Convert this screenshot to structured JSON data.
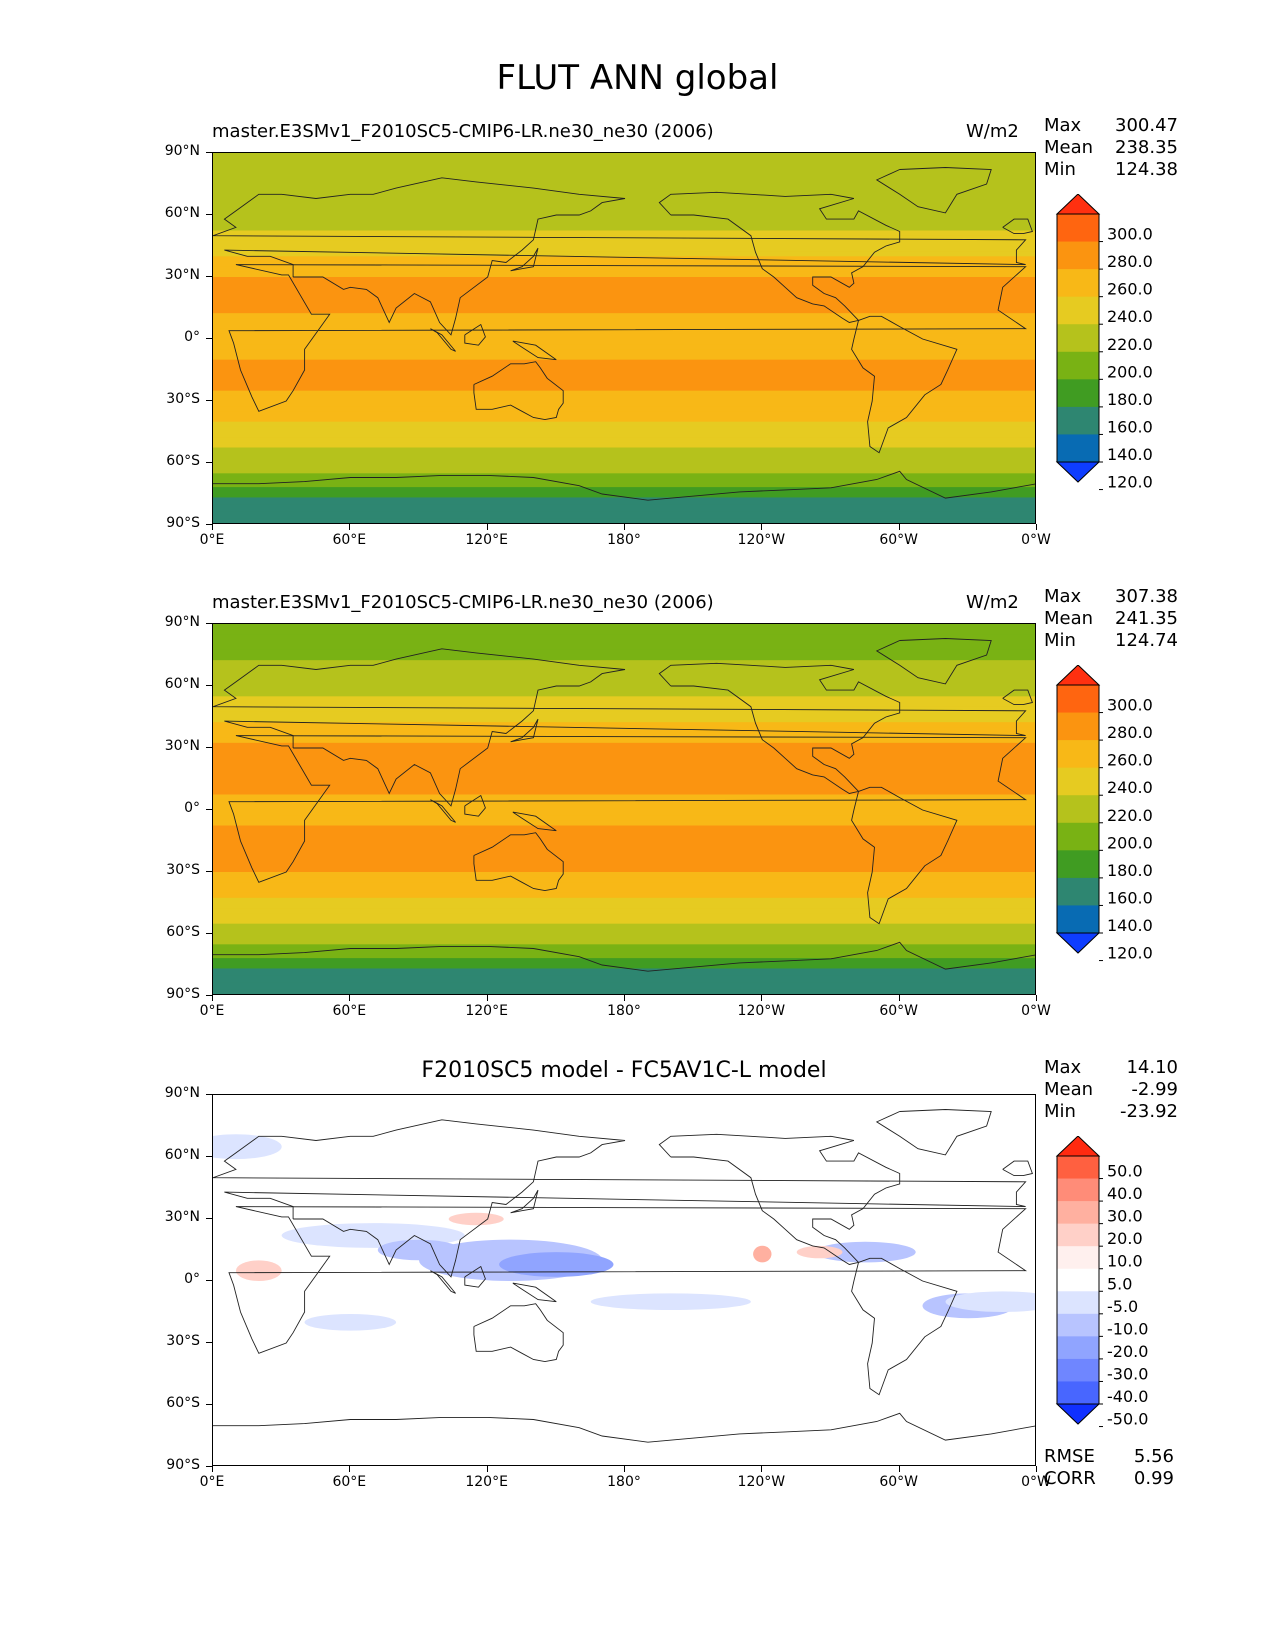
{
  "figure_title": "FLUT ANN global",
  "chart_data": [
    {
      "type": "heatmap",
      "title": "master.E3SMv1_F2010SC5-CMIP6-LR.ne30_ne30 (2006)",
      "units": "W/m2",
      "stats": {
        "max_label": "Max",
        "max": "300.47",
        "mean_label": "Mean",
        "mean": "238.35",
        "min_label": "Min",
        "min": "124.38"
      },
      "colorbar_levels": [
        "300.0",
        "280.0",
        "260.0",
        "240.0",
        "220.0",
        "200.0",
        "180.0",
        "160.0",
        "140.0",
        "120.0"
      ],
      "colorbar_colors": [
        "#ff3010",
        "#ff6510",
        "#fb9410",
        "#f8b817",
        "#e6cb21",
        "#b5c21c",
        "#79b214",
        "#409c22",
        "#2e8671",
        "#086bb3",
        "#0e3dff"
      ],
      "x_ticks": [
        "0°E",
        "60°E",
        "120°E",
        "180°",
        "120°W",
        "60°W",
        "0°W"
      ],
      "y_ticks": [
        "90°N",
        "60°N",
        "30°N",
        "0°",
        "30°S",
        "60°S",
        "90°S"
      ],
      "lat_profile": [
        {
          "lat": 90,
          "value": 205
        },
        {
          "lat": 75,
          "value": 200
        },
        {
          "lat": 60,
          "value": 212
        },
        {
          "lat": 45,
          "value": 228
        },
        {
          "lat": 30,
          "value": 262
        },
        {
          "lat": 15,
          "value": 262
        },
        {
          "lat": 0,
          "value": 248
        },
        {
          "lat": -15,
          "value": 265
        },
        {
          "lat": -30,
          "value": 258
        },
        {
          "lat": -45,
          "value": 230
        },
        {
          "lat": -60,
          "value": 212
        },
        {
          "lat": -70,
          "value": 185
        },
        {
          "lat": -80,
          "value": 150
        },
        {
          "lat": -90,
          "value": 155
        }
      ]
    },
    {
      "type": "heatmap",
      "title": "master.E3SMv1_F2010SC5-CMIP6-LR.ne30_ne30 (2006)",
      "units": "W/m2",
      "stats": {
        "max_label": "Max",
        "max": "307.38",
        "mean_label": "Mean",
        "mean": "241.35",
        "min_label": "Min",
        "min": "124.74"
      },
      "colorbar_levels": [
        "300.0",
        "280.0",
        "260.0",
        "240.0",
        "220.0",
        "200.0",
        "180.0",
        "160.0",
        "140.0",
        "120.0"
      ],
      "colorbar_colors": [
        "#ff3010",
        "#ff6510",
        "#fb9410",
        "#f8b817",
        "#e6cb21",
        "#b5c21c",
        "#79b214",
        "#409c22",
        "#2e8671",
        "#086bb3",
        "#0e3dff"
      ],
      "x_ticks": [
        "0°E",
        "60°E",
        "120°E",
        "180°",
        "120°W",
        "60°W",
        "0°W"
      ],
      "y_ticks": [
        "90°N",
        "60°N",
        "30°N",
        "0°",
        "30°S",
        "60°S",
        "90°S"
      ],
      "lat_profile": [
        {
          "lat": 90,
          "value": 200
        },
        {
          "lat": 75,
          "value": 198
        },
        {
          "lat": 60,
          "value": 212
        },
        {
          "lat": 45,
          "value": 232
        },
        {
          "lat": 30,
          "value": 266
        },
        {
          "lat": 15,
          "value": 266
        },
        {
          "lat": 0,
          "value": 252
        },
        {
          "lat": -15,
          "value": 268
        },
        {
          "lat": -30,
          "value": 262
        },
        {
          "lat": -45,
          "value": 234
        },
        {
          "lat": -60,
          "value": 214
        },
        {
          "lat": -70,
          "value": 188
        },
        {
          "lat": -80,
          "value": 150
        },
        {
          "lat": -90,
          "value": 158
        }
      ]
    },
    {
      "type": "heatmap",
      "title": "F2010SC5 model - FC5AV1C-L model",
      "units": "",
      "stats": {
        "max_label": "Max",
        "max": "14.10",
        "mean_label": "Mean",
        "mean": "-2.99",
        "min_label": "Min",
        "min": "-23.92"
      },
      "colorbar_levels": [
        "50.0",
        "40.0",
        "30.0",
        "20.0",
        "10.0",
        "5.0",
        "-5.0",
        "-10.0",
        "-20.0",
        "-30.0",
        "-40.0",
        "-50.0"
      ],
      "colorbar_colors": [
        "#ff2a10",
        "#ff6040",
        "#ff8c78",
        "#ffb0a0",
        "#ffd0c8",
        "#fff0ee",
        "#ffffff",
        "#dce4ff",
        "#b8c4ff",
        "#90a4ff",
        "#6f86ff",
        "#4866ff",
        "#1030ff"
      ],
      "x_ticks": [
        "0°E",
        "60°E",
        "120°E",
        "180°",
        "120°W",
        "60°W",
        "0°W"
      ],
      "y_ticks": [
        "90°N",
        "60°N",
        "30°N",
        "0°",
        "30°S",
        "60°S",
        "90°S"
      ],
      "metrics": {
        "rmse_label": "RMSE",
        "rmse": "5.56",
        "corr_label": "CORR",
        "corr": "0.99"
      }
    }
  ]
}
